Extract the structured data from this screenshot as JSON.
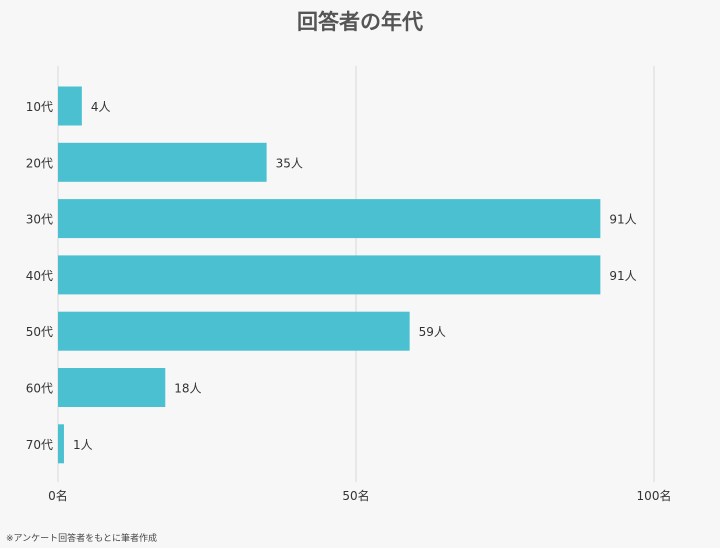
{
  "chart_data": {
    "type": "bar",
    "orientation": "horizontal",
    "title": "回答者の年代",
    "categories": [
      "10代",
      "20代",
      "30代",
      "40代",
      "50代",
      "60代",
      "70代"
    ],
    "values": [
      4,
      35,
      91,
      91,
      59,
      18,
      1
    ],
    "value_labels": [
      "4人",
      "35人",
      "91人",
      "91人",
      "59人",
      "18人",
      "1人"
    ],
    "xlim": [
      0,
      100
    ],
    "x_ticks": [
      0,
      50,
      100
    ],
    "x_tick_labels": [
      "0名",
      "50名",
      "100名"
    ],
    "grid": true,
    "bar_color": "#4bc0d1",
    "grid_color": "#d9d9d9"
  },
  "source_note": "※アンケート回答者をもとに筆者作成"
}
